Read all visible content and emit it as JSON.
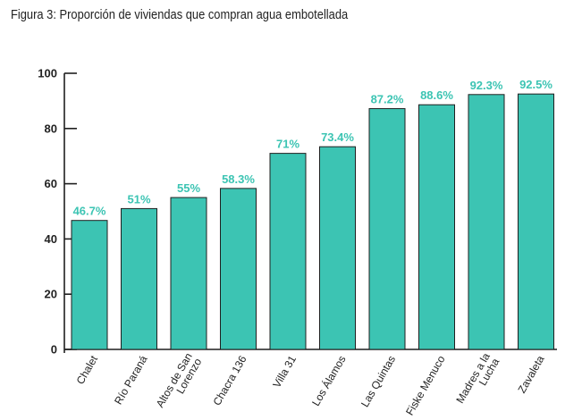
{
  "figure_title": "Figura 3: Proporción de viviendas que compran agua embotellada",
  "colors": {
    "bar": "#3cc4b3",
    "bar_stroke": "#1f1f1f",
    "label": "#3cc4b3",
    "axis": "#1f1f1f"
  },
  "chart_data": {
    "type": "bar",
    "title": "Figura 3: Proporción de viviendas que compran agua embotellada",
    "xlabel": "",
    "ylabel": "",
    "ylim": [
      0,
      100
    ],
    "yticks": [
      0,
      20,
      40,
      60,
      80,
      100
    ],
    "grid": false,
    "categories": [
      [
        "Chalet"
      ],
      [
        "Río Paraná"
      ],
      [
        "Altos de San",
        "Lorenzo"
      ],
      [
        "Chacra 136"
      ],
      [
        "Villa 31"
      ],
      [
        "Los Álamos"
      ],
      [
        "Las Quintas"
      ],
      [
        "Fiske Menuco"
      ],
      [
        "Madres a la",
        "Lucha"
      ],
      [
        "Zavaleta"
      ]
    ],
    "values": [
      46.7,
      51,
      55,
      58.3,
      71,
      73.4,
      87.2,
      88.6,
      92.3,
      92.5
    ],
    "data_labels": [
      "46.7%",
      "51%",
      "55%",
      "58.3%",
      "71%",
      "73.4%",
      "87.2%",
      "88.6%",
      "92.3%",
      "92.5%"
    ]
  }
}
